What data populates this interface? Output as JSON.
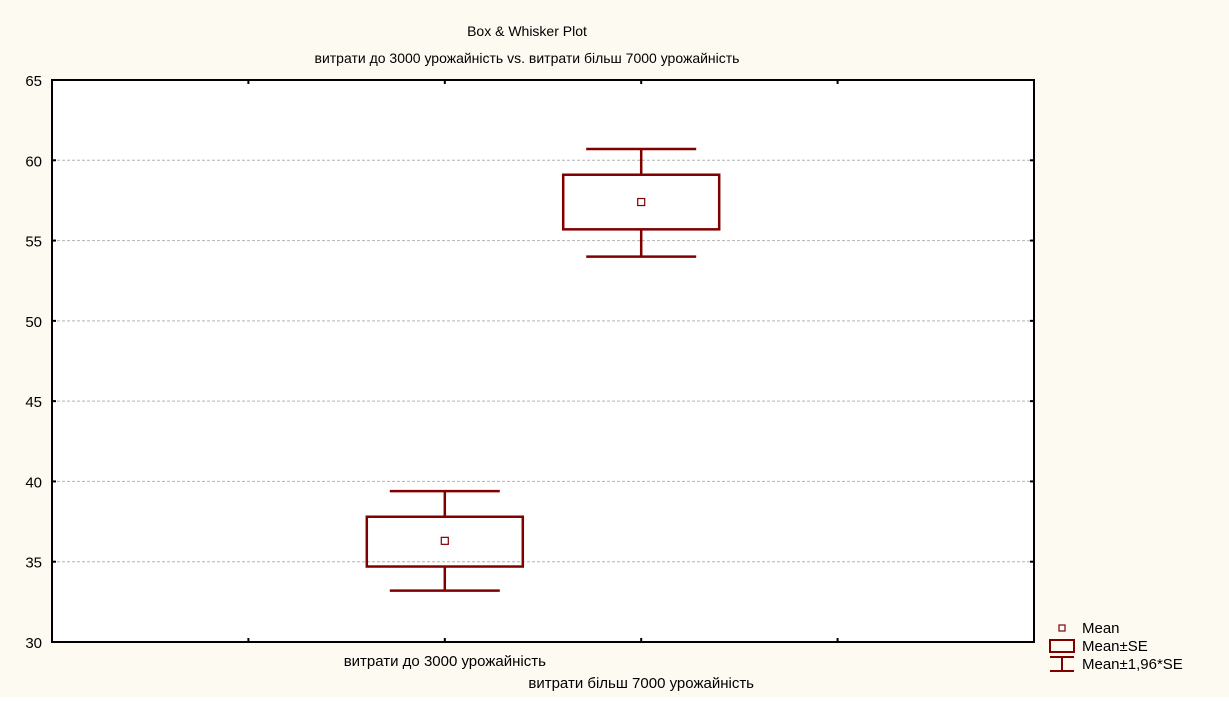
{
  "chart_data": {
    "type": "box",
    "title": "Box & Whisker Plot",
    "subtitle": "витрати до 3000 урожайність vs. витрати більш 7000 урожайність",
    "xlabel": "",
    "ylabel": "",
    "ylim": [
      30,
      65
    ],
    "yticks": [
      30,
      35,
      40,
      45,
      50,
      55,
      60,
      65
    ],
    "grid": true,
    "legend_position": "bottom-right",
    "categories": [
      "витрати до 3000 урожайність",
      "витрати більш 7000 урожайність"
    ],
    "series": [
      {
        "category": "витрати до 3000 урожайність",
        "mean": 36.3,
        "se_low": 34.7,
        "se_high": 37.8,
        "ci_low": 33.2,
        "ci_high": 39.4
      },
      {
        "category": "витрати більш 7000 урожайність",
        "mean": 57.4,
        "se_low": 55.7,
        "se_high": 59.1,
        "ci_low": 54.0,
        "ci_high": 60.7
      }
    ],
    "legend": [
      {
        "symbol": "mean",
        "label": "Mean"
      },
      {
        "symbol": "box",
        "label": "Mean±SE"
      },
      {
        "symbol": "whisker",
        "label": "Mean±1,96*SE"
      }
    ],
    "colors": {
      "series": "#800000",
      "frame": "#000000",
      "grid": "#b3b3b3",
      "background": "#fdfaf2",
      "plot_background": "#ffffff"
    }
  }
}
